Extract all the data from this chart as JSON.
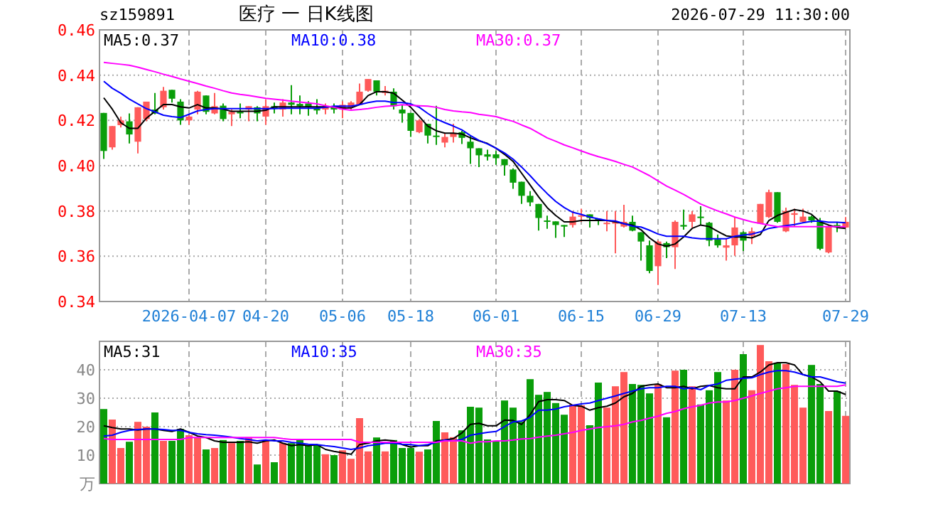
{
  "chart_data": [
    {
      "type": "candlestick",
      "title": "医疗 一 日K线图",
      "annotations": [
        "sz159891",
        "2026-07-29 11:30:00"
      ],
      "categories": [
        null,
        null,
        null,
        null,
        null,
        null,
        null,
        null,
        null,
        null,
        "2026-04-07",
        null,
        null,
        null,
        null,
        null,
        null,
        null,
        null,
        "04-20",
        null,
        null,
        null,
        null,
        null,
        null,
        null,
        null,
        "05-06",
        null,
        null,
        null,
        null,
        null,
        null,
        null,
        "05-18",
        null,
        null,
        null,
        null,
        null,
        null,
        null,
        null,
        null,
        "06-01",
        null,
        null,
        null,
        null,
        null,
        null,
        null,
        null,
        null,
        "06-15",
        null,
        null,
        null,
        null,
        null,
        null,
        null,
        null,
        "06-29",
        null,
        null,
        null,
        null,
        null,
        null,
        null,
        null,
        null,
        "07-13",
        null,
        null,
        null,
        null,
        null,
        null,
        null,
        null,
        null,
        null,
        null,
        "07-29"
      ],
      "ohlc": [
        [
          0.4233,
          0.4233,
          0.403,
          0.4065
        ],
        [
          0.4081,
          0.4175,
          0.4071,
          0.4175
        ],
        [
          0.4179,
          0.4217,
          0.4169,
          0.42
        ],
        [
          0.4196,
          0.4231,
          0.4098,
          0.4138
        ],
        [
          0.4106,
          0.4258,
          0.4054,
          0.4258
        ],
        [
          0.4206,
          0.4283,
          0.4196,
          0.4283
        ],
        [
          0.4248,
          0.4321,
          0.4227,
          0.4231
        ],
        [
          0.4258,
          0.4348,
          0.4248,
          0.4331
        ],
        [
          0.4335,
          0.4335,
          0.4279,
          0.4296
        ],
        [
          0.4283,
          0.4294,
          0.4181,
          0.42
        ],
        [
          0.42,
          0.4227,
          0.4181,
          0.4217
        ],
        [
          0.4248,
          0.4331,
          0.4227,
          0.4327
        ],
        [
          0.431,
          0.431,
          0.4227,
          0.4238
        ],
        [
          0.4231,
          0.4321,
          0.4227,
          0.4263
        ],
        [
          0.4265,
          0.4275,
          0.4196,
          0.4206
        ],
        [
          0.4227,
          0.4248,
          0.4175,
          0.4238
        ],
        [
          0.4238,
          0.4275,
          0.421,
          0.4231
        ],
        [
          0.4248,
          0.4263,
          0.4196,
          0.4263
        ],
        [
          0.4258,
          0.4263,
          0.4196,
          0.4231
        ],
        [
          0.4217,
          0.4294,
          0.4181,
          0.4263
        ],
        [
          0.4263,
          0.4279,
          0.4231,
          0.4254
        ],
        [
          0.4248,
          0.4294,
          0.4217,
          0.4279
        ],
        [
          0.4279,
          0.4356,
          0.4227,
          0.4269
        ],
        [
          0.4273,
          0.431,
          0.4227,
          0.4263
        ],
        [
          0.4275,
          0.4285,
          0.4221,
          0.4258
        ],
        [
          0.4252,
          0.4294,
          0.4227,
          0.4244
        ],
        [
          0.4248,
          0.4275,
          0.4227,
          0.4263
        ],
        [
          0.4263,
          0.4275,
          0.4231,
          0.4248
        ],
        [
          0.4248,
          0.4285,
          0.421,
          0.4269
        ],
        [
          0.4258,
          0.4285,
          0.4248,
          0.4279
        ],
        [
          0.4269,
          0.4363,
          0.4269,
          0.4327
        ],
        [
          0.4331,
          0.4383,
          0.4327,
          0.4383
        ],
        [
          0.4377,
          0.4377,
          0.431,
          0.4327
        ],
        [
          0.4321,
          0.4352,
          0.431,
          0.4331
        ],
        [
          0.4327,
          0.4342,
          0.4248,
          0.4263
        ],
        [
          0.4248,
          0.4269,
          0.419,
          0.4231
        ],
        [
          0.4233,
          0.4233,
          0.4127,
          0.4154
        ],
        [
          0.4148,
          0.4206,
          0.4144,
          0.42
        ],
        [
          0.4185,
          0.4185,
          0.4098,
          0.4133
        ],
        [
          0.4133,
          0.4265,
          0.4092,
          0.4127
        ],
        [
          0.4102,
          0.4144,
          0.4081,
          0.4127
        ],
        [
          0.4127,
          0.4185,
          0.4102,
          0.4144
        ],
        [
          0.4148,
          0.4154,
          0.4096,
          0.4123
        ],
        [
          0.4106,
          0.4133,
          0.4008,
          0.4077
        ],
        [
          0.4077,
          0.4077,
          0.3994,
          0.4046
        ],
        [
          0.405,
          0.4071,
          0.4023,
          0.404
        ],
        [
          0.405,
          0.4065,
          0.4004,
          0.4033
        ],
        [
          0.4029,
          0.4029,
          0.3956,
          0.4002
        ],
        [
          0.3983,
          0.3988,
          0.3898,
          0.3925
        ],
        [
          0.3929,
          0.3929,
          0.3831,
          0.3867
        ],
        [
          0.3867,
          0.3888,
          0.3821,
          0.3838
        ],
        [
          0.3831,
          0.3831,
          0.3713,
          0.3769
        ],
        [
          0.3758,
          0.3779,
          0.3721,
          0.3752
        ],
        [
          0.3754,
          0.3754,
          0.3681,
          0.3738
        ],
        [
          0.3738,
          0.3738,
          0.3685,
          0.3731
        ],
        [
          0.3738,
          0.38,
          0.3727,
          0.3775
        ],
        [
          0.3775,
          0.381,
          0.3752,
          0.3781
        ],
        [
          0.3785,
          0.3785,
          0.3727,
          0.3769
        ],
        [
          0.3765,
          0.3765,
          0.3738,
          0.3758
        ],
        [
          0.3742,
          0.38,
          0.371,
          0.3748
        ],
        [
          0.3744,
          0.38,
          0.3613,
          0.3752
        ],
        [
          0.3731,
          0.3827,
          0.3727,
          0.3752
        ],
        [
          0.3752,
          0.3779,
          0.371,
          0.3713
        ],
        [
          0.3706,
          0.3706,
          0.3581,
          0.3665
        ],
        [
          0.3648,
          0.3669,
          0.3525,
          0.3535
        ],
        [
          0.3556,
          0.3669,
          0.3473,
          0.3665
        ],
        [
          0.3658,
          0.3665,
          0.3592,
          0.364
        ],
        [
          0.364,
          0.3758,
          0.3544,
          0.3752
        ],
        [
          0.3738,
          0.3806,
          0.3717,
          0.3731
        ],
        [
          0.3752,
          0.38,
          0.3727,
          0.3785
        ],
        [
          0.3775,
          0.3821,
          0.3738,
          0.3769
        ],
        [
          0.3748,
          0.3752,
          0.3644,
          0.3669
        ],
        [
          0.3675,
          0.3696,
          0.3638,
          0.3648
        ],
        [
          0.3638,
          0.3679,
          0.3581,
          0.3648
        ],
        [
          0.3648,
          0.3773,
          0.3602,
          0.3727
        ],
        [
          0.3706,
          0.371,
          0.3623,
          0.3669
        ],
        [
          0.369,
          0.3727,
          0.3654,
          0.371
        ],
        [
          0.3744,
          0.3831,
          0.3744,
          0.3831
        ],
        [
          0.3773,
          0.3894,
          0.3769,
          0.3883
        ],
        [
          0.3883,
          0.3883,
          0.3748,
          0.3752
        ],
        [
          0.371,
          0.3815,
          0.3706,
          0.38
        ],
        [
          0.3783,
          0.381,
          0.3731,
          0.379
        ],
        [
          0.3752,
          0.381,
          0.3748,
          0.3775
        ],
        [
          0.3775,
          0.3779,
          0.3748,
          0.3758
        ],
        [
          0.3754,
          0.3769,
          0.3627,
          0.3633
        ],
        [
          0.3617,
          0.3738,
          0.3613,
          0.3731
        ],
        [
          0.3738,
          0.3752,
          0.3706,
          0.3727
        ],
        [
          0.3727,
          0.3773,
          0.3723,
          0.3752
        ]
      ],
      "colors": [
        "#0a9e0a",
        "#ff5a5a",
        "#ff5a5a",
        "#0a9e0a",
        "#ff5a5a",
        "#ff5a5a",
        "#0a9e0a",
        "#ff5a5a",
        "#0a9e0a",
        "#0a9e0a",
        "#ff5a5a",
        "#ff5a5a",
        "#0a9e0a",
        "#ff5a5a",
        "#0a9e0a",
        "#ff5a5a",
        "#0a9e0a",
        "#ff5a5a",
        "#0a9e0a",
        "#ff5a5a",
        "#0a9e0a",
        "#ff5a5a",
        "#0a9e0a",
        "#0a9e0a",
        "#0a9e0a",
        "#0a9e0a",
        "#ff5a5a",
        "#0a9e0a",
        "#ff5a5a",
        "#ff5a5a",
        "#ff5a5a",
        "#ff5a5a",
        "#0a9e0a",
        "#ff5a5a",
        "#0a9e0a",
        "#0a9e0a",
        "#0a9e0a",
        "#ff5a5a",
        "#0a9e0a",
        "#0a9e0a",
        "#ff5a5a",
        "#ff5a5a",
        "#0a9e0a",
        "#0a9e0a",
        "#0a9e0a",
        "#0a9e0a",
        "#0a9e0a",
        "#0a9e0a",
        "#0a9e0a",
        "#0a9e0a",
        "#0a9e0a",
        "#0a9e0a",
        "#0a9e0a",
        "#0a9e0a",
        "#0a9e0a",
        "#ff5a5a",
        "#ff5a5a",
        "#0a9e0a",
        "#0a9e0a",
        "#ff5a5a",
        "#ff5a5a",
        "#ff5a5a",
        "#0a9e0a",
        "#0a9e0a",
        "#0a9e0a",
        "#ff5a5a",
        "#0a9e0a",
        "#ff5a5a",
        "#0a9e0a",
        "#ff5a5a",
        "#0a9e0a",
        "#0a9e0a",
        "#0a9e0a",
        "#ff5a5a",
        "#ff5a5a",
        "#0a9e0a",
        "#ff5a5a",
        "#ff5a5a",
        "#ff5a5a",
        "#0a9e0a",
        "#ff5a5a",
        "#ff5a5a",
        "#ff5a5a",
        "#0a9e0a",
        "#0a9e0a",
        "#ff5a5a",
        "#0a9e0a",
        "#ff5a5a"
      ],
      "series": [
        {
          "type": "line",
          "name": "MA5:0.37",
          "color": "#000000",
          "values": [
            0.43,
            0.425,
            0.419,
            0.4165,
            0.4165,
            0.421,
            0.424,
            0.427,
            0.427,
            0.426,
            0.4255,
            0.427,
            0.4255,
            0.4255,
            0.425,
            0.424,
            0.424,
            0.424,
            0.424,
            0.4245,
            0.426,
            0.426,
            0.426,
            0.426,
            0.426,
            0.426,
            0.426,
            0.426,
            0.4255,
            0.4255,
            0.427,
            0.431,
            0.4327,
            0.4327,
            0.432,
            0.429,
            0.4258,
            0.4217,
            0.4175,
            0.4154,
            0.4144,
            0.4144,
            0.414,
            0.4123,
            0.411,
            0.4098,
            0.4077,
            0.405,
            0.4019,
            0.3967,
            0.3915,
            0.3862,
            0.3815,
            0.378,
            0.3752,
            0.3752,
            0.3758,
            0.3758,
            0.3758,
            0.3758,
            0.3752,
            0.3744,
            0.3738,
            0.3717,
            0.3681,
            0.3654,
            0.3644,
            0.3654,
            0.3685,
            0.3723,
            0.3738,
            0.3731,
            0.371,
            0.369,
            0.3685,
            0.3685,
            0.3681,
            0.3696,
            0.3758,
            0.378,
            0.3794,
            0.3806,
            0.38,
            0.3785,
            0.3752,
            0.3738,
            0.3727,
            0.3723
          ]
        },
        {
          "type": "line",
          "name": "MA10:0.38",
          "color": "#0000ff",
          "values": [
            0.4373,
            0.4342,
            0.432,
            0.4294,
            0.4273,
            0.4252,
            0.4238,
            0.4223,
            0.4217,
            0.4213,
            0.4227,
            0.4242,
            0.4248,
            0.4252,
            0.4252,
            0.4252,
            0.4252,
            0.4252,
            0.4252,
            0.4252,
            0.4252,
            0.4254,
            0.4254,
            0.4254,
            0.4254,
            0.4254,
            0.4258,
            0.4263,
            0.4263,
            0.4263,
            0.4269,
            0.4279,
            0.4285,
            0.4285,
            0.4279,
            0.4279,
            0.4273,
            0.4258,
            0.4231,
            0.4206,
            0.419,
            0.4175,
            0.4158,
            0.4133,
            0.4112,
            0.4096,
            0.4077,
            0.4056,
            0.4029,
            0.3994,
            0.3956,
            0.3915,
            0.3877,
            0.3842,
            0.3815,
            0.3794,
            0.3785,
            0.3773,
            0.3765,
            0.3758,
            0.3756,
            0.3744,
            0.3733,
            0.3729,
            0.3715,
            0.3698,
            0.3688,
            0.3688,
            0.3688,
            0.3681,
            0.3677,
            0.3677,
            0.3677,
            0.3677,
            0.3688,
            0.3694,
            0.3698,
            0.3708,
            0.3723,
            0.3729,
            0.3735,
            0.374,
            0.3748,
            0.3754,
            0.3756,
            0.375,
            0.375,
            0.3748
          ]
        },
        {
          "type": "line",
          "name": "MA30:0.37",
          "color": "#ff00ff",
          "values": [
            0.4456,
            0.4452,
            0.4448,
            0.4444,
            0.4435,
            0.4425,
            0.4415,
            0.4404,
            0.4394,
            0.4383,
            0.4373,
            0.4363,
            0.4352,
            0.4342,
            0.4331,
            0.4321,
            0.4315,
            0.431,
            0.4304,
            0.4298,
            0.4294,
            0.429,
            0.4285,
            0.4281,
            0.4277,
            0.4273,
            0.4265,
            0.4258,
            0.425,
            0.4245,
            0.4248,
            0.4252,
            0.4258,
            0.4262,
            0.4265,
            0.4269,
            0.4267,
            0.4265,
            0.4263,
            0.4258,
            0.4248,
            0.4242,
            0.4238,
            0.4235,
            0.4227,
            0.4222,
            0.4217,
            0.4206,
            0.4196,
            0.418,
            0.4165,
            0.4144,
            0.4123,
            0.4108,
            0.4092,
            0.4079,
            0.4065,
            0.4052,
            0.404,
            0.403,
            0.4019,
            0.4006,
            0.3994,
            0.3975,
            0.3956,
            0.3933,
            0.391,
            0.3892,
            0.3873,
            0.3852,
            0.3831,
            0.3815,
            0.38,
            0.3787,
            0.3773,
            0.3762,
            0.3752,
            0.3745,
            0.3738,
            0.3731,
            0.3731,
            0.3731,
            0.3731,
            0.3731,
            0.3731,
            0.3731,
            0.3731,
            0.3731
          ]
        }
      ],
      "ylim": [
        0.34,
        0.46
      ],
      "yticks": [
        0.34,
        0.36,
        0.38,
        {
          "value": 0.4,
          "label": "0.40"
        },
        0.42,
        0.44,
        0.46
      ],
      "grid": true,
      "legend": "top"
    },
    {
      "type": "bar",
      "tick_labels": "y",
      "categories": [
        null,
        null,
        null,
        null,
        null,
        null,
        null,
        null,
        null,
        null,
        null,
        null,
        null,
        null,
        null,
        null,
        null,
        null,
        null,
        null,
        null,
        null,
        null,
        null,
        null,
        null,
        null,
        null,
        null,
        null,
        null,
        null,
        null,
        null,
        null,
        null,
        null,
        null,
        null,
        null,
        null,
        null,
        null,
        null,
        null,
        null,
        null,
        null,
        null,
        null,
        null,
        null,
        null,
        null,
        null,
        null,
        null,
        null,
        null,
        null,
        null,
        null,
        null,
        null,
        null,
        null,
        null,
        null,
        null,
        null,
        null,
        null,
        null,
        null,
        null,
        null,
        null,
        null,
        null,
        null,
        null,
        null,
        null,
        null,
        null,
        null,
        null,
        null
      ],
      "values": [
        26.2,
        22.5,
        12.5,
        14.7,
        21.7,
        20,
        25,
        15,
        15,
        19.2,
        17,
        16.3,
        12,
        12.5,
        15.3,
        14.2,
        15,
        16.3,
        6.7,
        15,
        7.5,
        14.2,
        14.2,
        15.5,
        13.3,
        13.7,
        10.3,
        10,
        11.7,
        8.7,
        23,
        11.3,
        16.2,
        11.3,
        15.3,
        12.5,
        12.5,
        11.2,
        12,
        22,
        18,
        16.3,
        18.7,
        27,
        26.7,
        15.5,
        15,
        29.2,
        26.7,
        21.7,
        36.7,
        31.2,
        32.2,
        28.3,
        24.2,
        27.8,
        27.5,
        20.5,
        35.5,
        26.7,
        34.2,
        39.2,
        35,
        34.7,
        31.7,
        35,
        23.3,
        39.7,
        40,
        34.2,
        27.8,
        32.8,
        39.2,
        29.2,
        40,
        45.5,
        32.8,
        48.7,
        43,
        42.5,
        42,
        34.7,
        26.7,
        41.7,
        35,
        25.5,
        32.5,
        23.8
      ],
      "colors": [
        "#0a9e0a",
        "#ff5a5a",
        "#ff5a5a",
        "#0a9e0a",
        "#ff5a5a",
        "#ff5a5a",
        "#0a9e0a",
        "#ff5a5a",
        "#0a9e0a",
        "#0a9e0a",
        "#ff5a5a",
        "#ff5a5a",
        "#0a9e0a",
        "#ff5a5a",
        "#0a9e0a",
        "#ff5a5a",
        "#0a9e0a",
        "#ff5a5a",
        "#0a9e0a",
        "#ff5a5a",
        "#0a9e0a",
        "#ff5a5a",
        "#0a9e0a",
        "#0a9e0a",
        "#0a9e0a",
        "#0a9e0a",
        "#ff5a5a",
        "#0a9e0a",
        "#ff5a5a",
        "#ff5a5a",
        "#ff5a5a",
        "#ff5a5a",
        "#0a9e0a",
        "#ff5a5a",
        "#0a9e0a",
        "#0a9e0a",
        "#0a9e0a",
        "#ff5a5a",
        "#0a9e0a",
        "#0a9e0a",
        "#ff5a5a",
        "#ff5a5a",
        "#0a9e0a",
        "#0a9e0a",
        "#0a9e0a",
        "#0a9e0a",
        "#0a9e0a",
        "#0a9e0a",
        "#0a9e0a",
        "#0a9e0a",
        "#0a9e0a",
        "#0a9e0a",
        "#0a9e0a",
        "#0a9e0a",
        "#0a9e0a",
        "#ff5a5a",
        "#ff5a5a",
        "#0a9e0a",
        "#0a9e0a",
        "#ff5a5a",
        "#ff5a5a",
        "#ff5a5a",
        "#0a9e0a",
        "#0a9e0a",
        "#0a9e0a",
        "#ff5a5a",
        "#0a9e0a",
        "#ff5a5a",
        "#0a9e0a",
        "#ff5a5a",
        "#0a9e0a",
        "#0a9e0a",
        "#0a9e0a",
        "#ff5a5a",
        "#ff5a5a",
        "#0a9e0a",
        "#ff5a5a",
        "#ff5a5a",
        "#ff5a5a",
        "#0a9e0a",
        "#ff5a5a",
        "#ff5a5a",
        "#ff5a5a",
        "#0a9e0a",
        "#0a9e0a",
        "#ff5a5a",
        "#0a9e0a",
        "#ff5a5a"
      ],
      "series": [
        {
          "type": "line",
          "name": "MA5:31",
          "color": "#000000",
          "values": [
            20.3,
            19.7,
            19.2,
            19.2,
            18.8,
            19.2,
            19.2,
            18.7,
            18.3,
            19.2,
            18,
            16.7,
            16.2,
            15,
            14.5,
            14.5,
            14.5,
            14.7,
            14.2,
            15,
            15.3,
            14.2,
            13.3,
            13.7,
            13.3,
            13.7,
            12,
            11.3,
            10.8,
            10.3,
            13.7,
            14.2,
            15,
            15.3,
            15,
            13.7,
            12.8,
            13.3,
            13.3,
            15,
            15.3,
            15.8,
            17.8,
            20.8,
            21.2,
            20.3,
            20.3,
            22.3,
            22.2,
            20.8,
            24.2,
            28.8,
            29.5,
            29.5,
            29.2,
            27.5,
            27.2,
            25.8,
            26.7,
            27.2,
            28.3,
            30.5,
            31.7,
            34.2,
            34.7,
            35,
            33.7,
            33.7,
            34.2,
            33.3,
            34.2,
            34.5,
            33.7,
            33.3,
            33.3,
            37.5,
            37.5,
            39.2,
            41.7,
            42.5,
            42.5,
            41.7,
            38.3,
            37.5,
            35.8,
            32.5,
            32.5,
            31.3
          ]
        },
        {
          "type": "line",
          "name": "MA10:35",
          "color": "#0000ff",
          "values": [
            16.7,
            17,
            18,
            18.7,
            19,
            19.2,
            19.2,
            19,
            18.7,
            18.7,
            18,
            17.5,
            17.2,
            17,
            16.7,
            16.3,
            15.8,
            15.5,
            15,
            15.3,
            15,
            15,
            14.5,
            14.2,
            13.8,
            13.7,
            13.3,
            13,
            12.5,
            12,
            12.5,
            13.3,
            13.7,
            14.2,
            14.2,
            13.8,
            13.7,
            13.3,
            13.7,
            14.5,
            15.3,
            15,
            15.5,
            17,
            17.5,
            18,
            18.3,
            20,
            21.7,
            22,
            23.3,
            25.8,
            25.8,
            26.2,
            27,
            27.5,
            28,
            28.3,
            29.2,
            30,
            30.8,
            31.7,
            32.5,
            33.3,
            33.7,
            33.7,
            34.2,
            34.2,
            33.3,
            33.7,
            33,
            34.5,
            35,
            36.3,
            36.7,
            37,
            37.2,
            38.3,
            39.2,
            39.7,
            39.7,
            39.2,
            38.3,
            37.5,
            37.5,
            36.7,
            35.8,
            35.3
          ]
        },
        {
          "type": "line",
          "name": "MA30:35",
          "color": "#ff00ff",
          "values": [
            15.8,
            15.5,
            15.5,
            15.5,
            15.5,
            15.5,
            15.5,
            15.5,
            15.5,
            15.5,
            16.2,
            16.2,
            16.2,
            16.2,
            16.2,
            16.2,
            16.2,
            16.2,
            16.2,
            16.2,
            16.2,
            15.8,
            15.5,
            15.5,
            15.5,
            15.5,
            15.5,
            15.5,
            15.5,
            15.5,
            14.5,
            14.5,
            14.5,
            14.5,
            14.5,
            14.5,
            14.5,
            14.5,
            14.5,
            14.5,
            15,
            15,
            15,
            14.2,
            14.7,
            14.7,
            15,
            15,
            15.3,
            15.7,
            15.8,
            16.3,
            16.7,
            17,
            17.5,
            18,
            18.7,
            19.2,
            19.7,
            20,
            20.3,
            20.8,
            21.7,
            22.2,
            23,
            23.7,
            24.7,
            25.3,
            26.3,
            27,
            27.5,
            28.3,
            28.7,
            28.7,
            29.2,
            30,
            30.8,
            31.7,
            32.5,
            33.3,
            33.7,
            34.2,
            34.2,
            34.2,
            34.2,
            34.2,
            34.2,
            34.7
          ]
        }
      ],
      "ylim": [
        0,
        50
      ],
      "yticks": [
        {
          "value": 0,
          "label": "万"
        },
        10,
        20,
        30,
        40
      ],
      "grid": true,
      "legend": "top"
    }
  ]
}
